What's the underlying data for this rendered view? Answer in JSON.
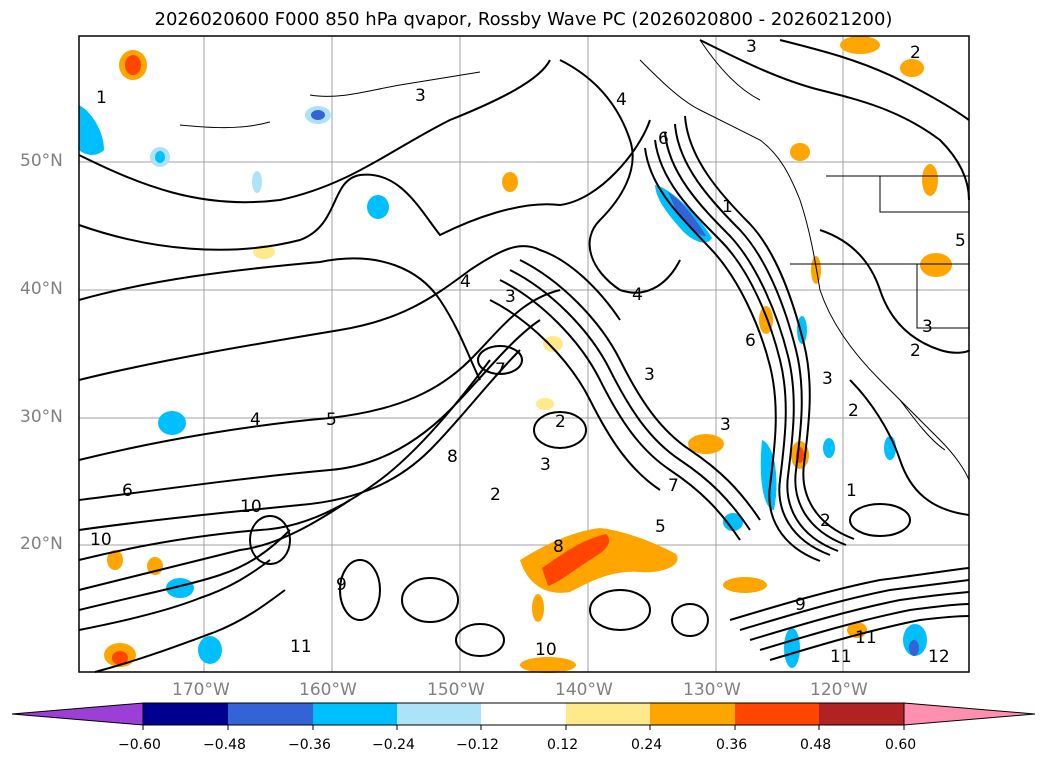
{
  "title": "2026020600 F000 850 hPa qvapor, Rossby Wave PC (2026020800 - 2026021200)",
  "latitude_labels": [
    "50°N",
    "40°N",
    "30°N",
    "20°N"
  ],
  "longitude_labels": [
    "170°W",
    "160°W",
    "150°W",
    "140°W",
    "130°W",
    "120°W"
  ],
  "colorbar": {
    "tick_labels": [
      "−0.60",
      "−0.48",
      "−0.36",
      "−0.24",
      "−0.12",
      "0.12",
      "0.24",
      "0.36",
      "0.48",
      "0.60"
    ],
    "colors": [
      "#9b3fd6",
      "#000090",
      "#3363d6",
      "#00bfff",
      "#ade3f8",
      "#ffffff",
      "#ffe98a",
      "#ffa500",
      "#ff4500",
      "#b22222",
      "#ff8fb0"
    ]
  },
  "contour_labels": [
    "1",
    "3",
    "4",
    "6",
    "5",
    "2",
    "3",
    "4",
    "5",
    "4",
    "3",
    "6",
    "7",
    "8",
    "9",
    "10",
    "10",
    "11",
    "12",
    "11",
    "11",
    "9",
    "10",
    "8",
    "7",
    "3",
    "2",
    "5",
    "4",
    "3",
    "2",
    "3",
    "2",
    "1",
    "3",
    "6",
    "2",
    "1",
    "2",
    "3"
  ],
  "colors": {
    "contour": "#000000",
    "grid": "#a0a0a0",
    "coast": "#000000",
    "axis_label": "#808080"
  }
}
